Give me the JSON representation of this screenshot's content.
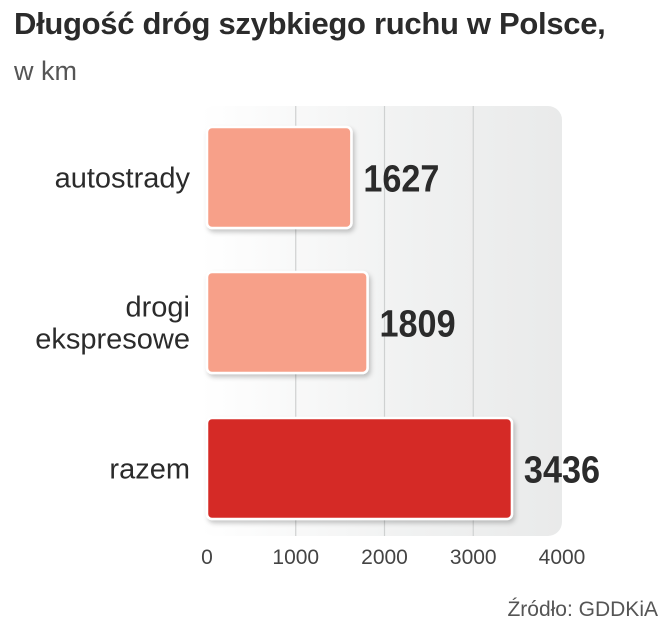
{
  "chart_data": {
    "type": "bar",
    "orientation": "horizontal",
    "title": "Długość dróg szybkiego ruchu w Polsce,",
    "subtitle": "w km",
    "categories": [
      [
        "autostrady"
      ],
      [
        "drogi",
        "ekspresowe"
      ],
      [
        "razem"
      ]
    ],
    "values": [
      1627,
      1809,
      3436
    ],
    "value_labels": [
      "1627",
      "1809",
      "3436"
    ],
    "bar_colors": [
      "#f7a089",
      "#f7a089",
      "#d52b27"
    ],
    "xlim": [
      0,
      4000
    ],
    "xticks": [
      0,
      1000,
      2000,
      3000,
      4000
    ],
    "xtick_labels": [
      "0",
      "1000",
      "2000",
      "3000",
      "4000"
    ],
    "grid": true,
    "source": "Źródło: GDDKiA"
  }
}
